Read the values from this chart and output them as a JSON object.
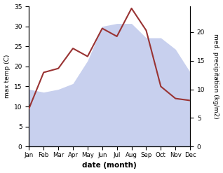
{
  "months": [
    "Jan",
    "Feb",
    "Mar",
    "Apr",
    "May",
    "Jun",
    "Jul",
    "Aug",
    "Sep",
    "Oct",
    "Nov",
    "Dec"
  ],
  "temperature": [
    9.5,
    18.5,
    19.5,
    24.5,
    22.5,
    29.5,
    27.5,
    34.5,
    29.0,
    15.0,
    12.0,
    11.5
  ],
  "precipitation": [
    10.0,
    9.5,
    10.0,
    11.0,
    15.0,
    21.0,
    21.5,
    21.5,
    19.0,
    19.0,
    17.0,
    13.0
  ],
  "temp_color": "#993333",
  "precip_fill_color": "#c8d0ee",
  "temp_ylim": [
    0,
    35
  ],
  "precip_ylim": [
    0,
    24.5
  ],
  "temp_yticks": [
    0,
    5,
    10,
    15,
    20,
    25,
    30,
    35
  ],
  "precip_yticks": [
    0,
    5,
    10,
    15,
    20
  ],
  "xlabel": "date (month)",
  "ylabel_left": "max temp (C)",
  "ylabel_right": "med. precipitation (kg/m2)",
  "bg_color": "#ffffff"
}
